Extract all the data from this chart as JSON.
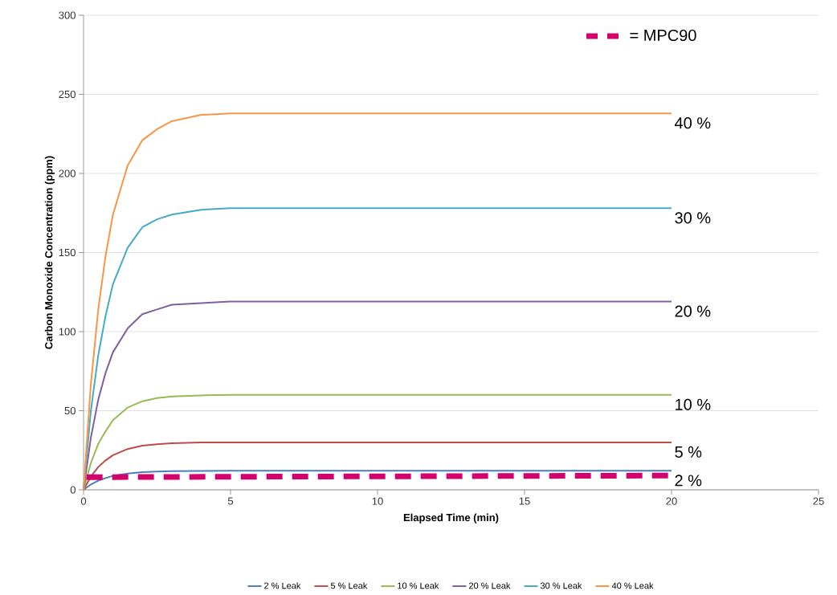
{
  "chart_data": {
    "type": "line",
    "xlabel": "Elapsed Time (min)",
    "ylabel": "Carbon Monoxide Concentration (ppm)",
    "xlim": [
      0,
      25
    ],
    "xticks": [
      0,
      5,
      10,
      15,
      20,
      25
    ],
    "ylim": [
      0,
      300
    ],
    "yticks": [
      0,
      50,
      100,
      150,
      200,
      250,
      300
    ],
    "grid": "y",
    "legend": "bottom",
    "marker": "none",
    "x": [
      0,
      0.25,
      0.5,
      0.75,
      1,
      1.5,
      2,
      2.5,
      3,
      4,
      5,
      7,
      10,
      15,
      20
    ],
    "series": [
      {
        "name": "2 % Leak",
        "color": "#4a7ebb",
        "values": [
          0,
          3.4,
          5.8,
          7.4,
          8.8,
          10.3,
          11.2,
          11.5,
          11.8,
          11.9,
          12,
          12,
          12,
          12,
          12
        ]
      },
      {
        "name": "5 % Leak",
        "color": "#be4b48",
        "values": [
          0,
          8.4,
          14.4,
          18.6,
          21.9,
          25.8,
          27.9,
          28.8,
          29.4,
          29.9,
          30,
          30,
          30,
          30,
          30
        ]
      },
      {
        "name": "10 % Leak",
        "color": "#98b954",
        "values": [
          0,
          17,
          29,
          37,
          44,
          52,
          56,
          58,
          59,
          59.7,
          60,
          60,
          60,
          60,
          60
        ]
      },
      {
        "name": "20 % Leak",
        "color": "#7d60a0",
        "values": [
          0,
          33,
          57,
          74,
          87,
          102,
          111,
          114,
          117,
          118,
          119,
          119,
          119,
          119,
          119
        ]
      },
      {
        "name": "30 % Leak",
        "color": "#46aac5",
        "values": [
          0,
          50,
          85,
          110,
          130,
          153,
          166,
          171,
          174,
          177,
          178,
          178,
          178,
          178,
          178
        ]
      },
      {
        "name": "40 % Leak",
        "color": "#f79646",
        "values": [
          0,
          67,
          114,
          148,
          174,
          205,
          221,
          228,
          233,
          237,
          238,
          238,
          238,
          238,
          238
        ]
      },
      {
        "name": "= MPC90",
        "color": "#d4006c",
        "line_style": "dashed",
        "x": [
          0.1,
          20
        ],
        "values": [
          8,
          9
        ]
      }
    ],
    "annotations": [
      "40 %",
      "30 %",
      "20 %",
      "10 %",
      "5 %",
      "2 %"
    ]
  }
}
